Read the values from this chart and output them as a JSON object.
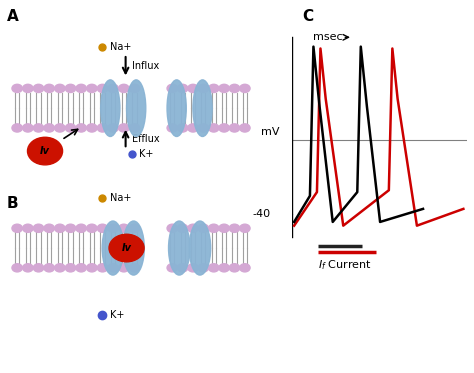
{
  "background_color": "#ffffff",
  "panel_A_label": "A",
  "panel_B_label": "B",
  "panel_C_label": "C",
  "membrane_color": "#8ab4d4",
  "lipid_head_color": "#d4a8d4",
  "lipid_tail_color": "#a0a0a0",
  "iv_ball_color": "#cc1100",
  "iv_text": "Iv",
  "na_color": "#cc8800",
  "k_color": "#4455cc",
  "na_label": "Na+",
  "k_label": "K+",
  "influx_label": "Influx",
  "efflux_label": "Efflux",
  "msec_label": "msec",
  "mV_label": "mV",
  "minus40_label": "-40",
  "current_label": "Current",
  "black_line_color": "#000000",
  "red_line_color": "#cc0000",
  "bar_black": "#222222",
  "bar_red": "#cc0000"
}
